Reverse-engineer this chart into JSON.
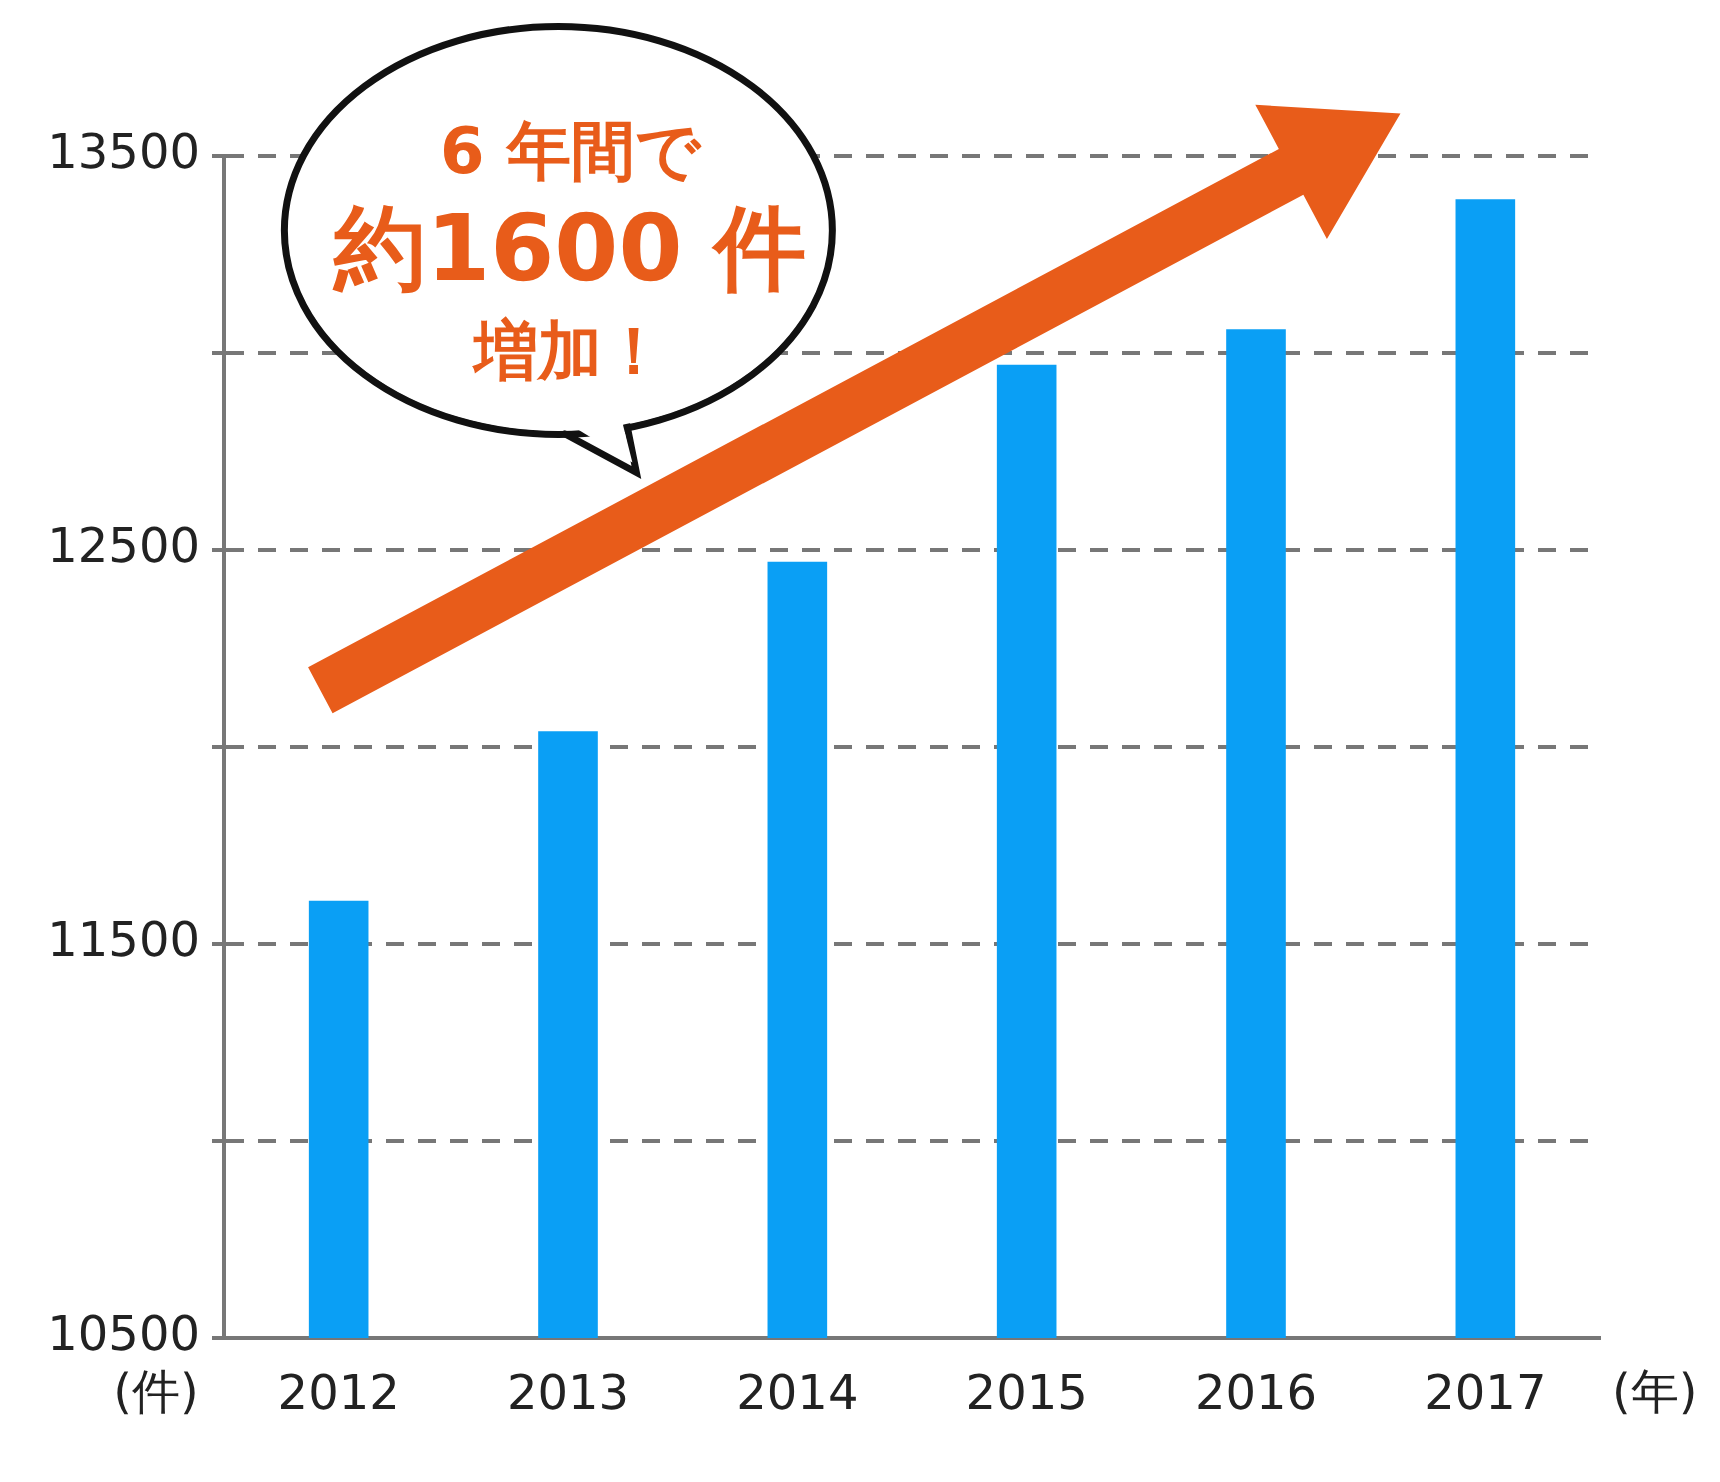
{
  "chart_data": {
    "type": "bar",
    "categories": [
      "2012",
      "2013",
      "2014",
      "2015",
      "2016",
      "2017"
    ],
    "values": [
      11610,
      12040,
      12470,
      12970,
      13060,
      13390
    ],
    "color": "#0a9ff5",
    "xlabel": "(年)",
    "ylabel": "(件)",
    "ylim": [
      10500,
      13500
    ],
    "yticks": [
      10500,
      {
        "value": 11000,
        "label": null
      },
      11500,
      {
        "value": 12000,
        "label": null
      },
      12500,
      {
        "value": 13000,
        "label": null
      },
      13500
    ],
    "grid": "y",
    "annotations": [
      "6 年間で",
      "約1600 件",
      "増加！"
    ]
  }
}
